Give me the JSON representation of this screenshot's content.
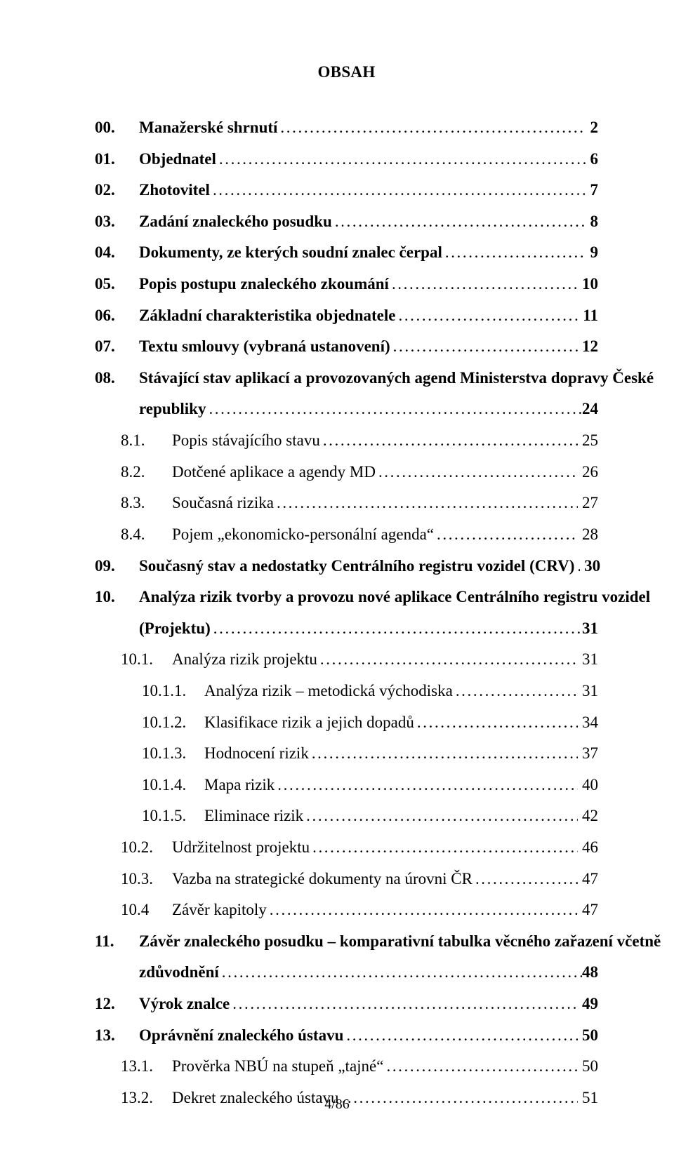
{
  "title": "OBSAH",
  "footer": "4/86",
  "leader_char": ".",
  "entries": [
    {
      "num": "00.",
      "label": "Manažerské shrnutí",
      "page": "2",
      "level": 0,
      "bold": true
    },
    {
      "num": "01.",
      "label": "Objednatel",
      "page": "6",
      "level": 0,
      "bold": true
    },
    {
      "num": "02.",
      "label": "Zhotovitel",
      "page": "7",
      "level": 0,
      "bold": true
    },
    {
      "num": "03.",
      "label": "Zadání znaleckého posudku",
      "page": "8",
      "level": 0,
      "bold": true
    },
    {
      "num": "04.",
      "label": "Dokumenty, ze kterých soudní znalec čerpal",
      "page": "9",
      "level": 0,
      "bold": true
    },
    {
      "num": "05.",
      "label": "Popis postupu znaleckého zkoumání",
      "page": "10",
      "level": 0,
      "bold": true
    },
    {
      "num": "06.",
      "label": "Základní charakteristika objednatele",
      "page": "11",
      "level": 0,
      "bold": true
    },
    {
      "num": "07.",
      "label": "Textu smlouvy (vybraná ustanovení)",
      "page": "12",
      "level": 0,
      "bold": true
    },
    {
      "num": "08.",
      "label": "Stávající stav aplikací a provozovaných agend Ministerstva dopravy České",
      "page": "",
      "level": 0,
      "bold": true,
      "noleader": true
    },
    {
      "num": "",
      "label": "republiky",
      "page": "24",
      "level": 0,
      "bold": true,
      "wrap": true
    },
    {
      "num": "8.1.",
      "label": "Popis stávajícího stavu",
      "page": "25",
      "level": 1,
      "bold": false
    },
    {
      "num": "8.2.",
      "label": "Dotčené aplikace a agendy MD",
      "page": "26",
      "level": 1,
      "bold": false
    },
    {
      "num": "8.3.",
      "label": "Současná rizika",
      "page": "27",
      "level": 1,
      "bold": false
    },
    {
      "num": "8.4.",
      "label": "Pojem „ekonomicko-personální agenda“",
      "page": "28",
      "level": 1,
      "bold": false
    },
    {
      "num": "09.",
      "label": "Současný stav a nedostatky Centrálního registru vozidel (CRV)",
      "page": "30",
      "level": 0,
      "bold": true
    },
    {
      "num": "10.",
      "label": "Analýza rizik tvorby a provozu nové aplikace Centrálního registru vozidel",
      "page": "",
      "level": 0,
      "bold": true,
      "noleader": true
    },
    {
      "num": "",
      "label": "(Projektu)",
      "page": "31",
      "level": 0,
      "bold": true,
      "wrap": true
    },
    {
      "num": "10.1.",
      "label": "Analýza rizik projektu",
      "page": "31",
      "level": 1,
      "bold": false
    },
    {
      "num": "10.1.1.",
      "label": "Analýza rizik – metodická východiska",
      "page": "31",
      "level": 2,
      "bold": false
    },
    {
      "num": "10.1.2.",
      "label": "Klasifikace rizik a jejich dopadů",
      "page": "34",
      "level": 2,
      "bold": false
    },
    {
      "num": "10.1.3.",
      "label": "Hodnocení rizik",
      "page": "37",
      "level": 2,
      "bold": false
    },
    {
      "num": "10.1.4.",
      "label": "Mapa rizik",
      "page": "40",
      "level": 2,
      "bold": false
    },
    {
      "num": "10.1.5.",
      "label": "Eliminace rizik",
      "page": "42",
      "level": 2,
      "bold": false
    },
    {
      "num": "10.2.",
      "label": "Udržitelnost projektu",
      "page": "46",
      "level": 1,
      "bold": false
    },
    {
      "num": "10.3.",
      "label": "Vazba na strategické dokumenty na úrovni ČR",
      "page": "47",
      "level": 1,
      "bold": false
    },
    {
      "num": "10.4",
      "label": "Závěr kapitoly",
      "page": "47",
      "level": 1,
      "bold": false
    },
    {
      "num": "11.",
      "label": "Závěr znaleckého posudku – komparativní tabulka věcného zařazení včetně",
      "page": "",
      "level": 0,
      "bold": true,
      "noleader": true
    },
    {
      "num": "",
      "label": "zdůvodnění",
      "page": "48",
      "level": 0,
      "bold": true,
      "wrap": true
    },
    {
      "num": "12.",
      "label": "Výrok znalce",
      "page": "49",
      "level": 0,
      "bold": true
    },
    {
      "num": "13.",
      "label": "Oprávnění znaleckého ústavu",
      "page": "50",
      "level": 0,
      "bold": true
    },
    {
      "num": "13.1.",
      "label": "Prověrka NBÚ na stupeň „tajné“",
      "page": "50",
      "level": 1,
      "bold": false
    },
    {
      "num": "13.2.",
      "label": "Dekret znaleckého ústavu",
      "page": "51",
      "level": 1,
      "bold": false
    }
  ]
}
